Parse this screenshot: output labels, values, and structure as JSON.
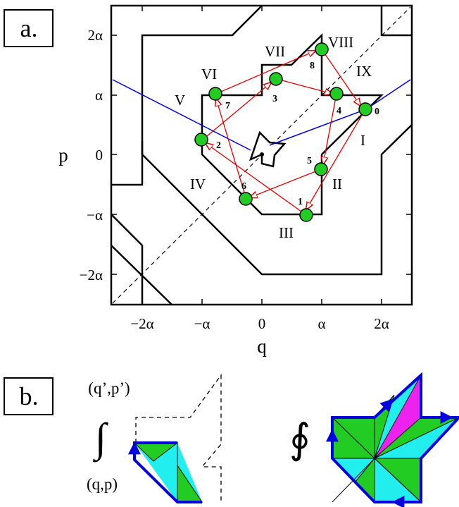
{
  "panel_a": {
    "label": "a.",
    "xlabel": "q",
    "ylabel": "p",
    "x_ticks": [
      "−2α",
      "−α",
      "0",
      "α",
      "2α"
    ],
    "y_ticks": [
      "2α",
      "α",
      "0",
      "−α",
      "−2α"
    ],
    "regions": [
      "I",
      "II",
      "III",
      "IV",
      "V",
      "VI",
      "VII",
      "VIII",
      "IX"
    ],
    "orbit_points": [
      "0",
      "1",
      "2",
      "3",
      "4",
      "5",
      "6",
      "7",
      "8"
    ],
    "colors": {
      "orbit_point": "#22cc22",
      "arrow": "#e00000",
      "line": "#0000dd"
    }
  },
  "panel_b": {
    "label": "b.",
    "top_label": "(q’,p’)",
    "bottom_label": "(q,p)",
    "integral_symbol": "∫",
    "loop_integral_symbol": "∮",
    "colors": {
      "green": "#22cc22",
      "cyan": "#22eeee",
      "magenta": "#ee22ee",
      "edge": "#0000dd"
    }
  }
}
